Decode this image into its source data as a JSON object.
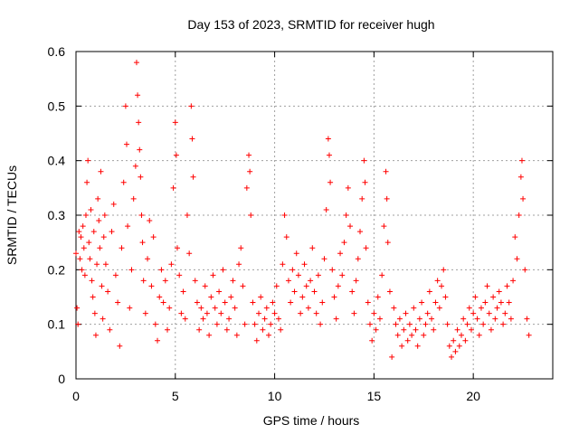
{
  "chart_data": {
    "type": "scatter",
    "title": "Day 153 of 2023, SRMTID for receiver hugh",
    "xlabel": "GPS time / hours",
    "ylabel": "SRMTID / TECUs",
    "xlim": [
      0,
      24
    ],
    "ylim": [
      0,
      0.6
    ],
    "x_ticks": [
      0,
      5,
      10,
      15,
      20
    ],
    "y_ticks": [
      0,
      0.1,
      0.2,
      0.3,
      0.4,
      0.5,
      0.6
    ],
    "x_tick_labels": [
      "0",
      "5",
      "10",
      "15",
      "20"
    ],
    "y_tick_labels": [
      "0",
      "0.1",
      "0.2",
      "0.3",
      "0.4",
      "0.5",
      "0.6"
    ],
    "grid": true,
    "marker": "+",
    "series": [
      {
        "name": "SRMTID",
        "color": "#ff0000",
        "points": [
          [
            0.0,
            0.23
          ],
          [
            0.05,
            0.13
          ],
          [
            0.1,
            0.1
          ],
          [
            0.15,
            0.27
          ],
          [
            0.2,
            0.22
          ],
          [
            0.25,
            0.26
          ],
          [
            0.3,
            0.2
          ],
          [
            0.35,
            0.28
          ],
          [
            0.4,
            0.24
          ],
          [
            0.45,
            0.19
          ],
          [
            0.5,
            0.3
          ],
          [
            0.55,
            0.36
          ],
          [
            0.6,
            0.4
          ],
          [
            0.65,
            0.25
          ],
          [
            0.7,
            0.22
          ],
          [
            0.75,
            0.31
          ],
          [
            0.8,
            0.18
          ],
          [
            0.85,
            0.15
          ],
          [
            0.9,
            0.27
          ],
          [
            0.95,
            0.12
          ],
          [
            1.0,
            0.08
          ],
          [
            1.05,
            0.21
          ],
          [
            1.1,
            0.33
          ],
          [
            1.15,
            0.29
          ],
          [
            1.2,
            0.24
          ],
          [
            1.25,
            0.38
          ],
          [
            1.3,
            0.17
          ],
          [
            1.35,
            0.11
          ],
          [
            1.4,
            0.26
          ],
          [
            1.45,
            0.3
          ],
          [
            1.5,
            0.21
          ],
          [
            1.6,
            0.16
          ],
          [
            1.7,
            0.09
          ],
          [
            1.8,
            0.27
          ],
          [
            1.9,
            0.32
          ],
          [
            2.0,
            0.19
          ],
          [
            2.1,
            0.14
          ],
          [
            2.2,
            0.06
          ],
          [
            2.3,
            0.24
          ],
          [
            2.4,
            0.36
          ],
          [
            2.5,
            0.5
          ],
          [
            2.55,
            0.43
          ],
          [
            2.6,
            0.28
          ],
          [
            2.7,
            0.13
          ],
          [
            2.8,
            0.2
          ],
          [
            2.9,
            0.33
          ],
          [
            3.0,
            0.39
          ],
          [
            3.05,
            0.58
          ],
          [
            3.1,
            0.52
          ],
          [
            3.15,
            0.47
          ],
          [
            3.2,
            0.42
          ],
          [
            3.25,
            0.37
          ],
          [
            3.3,
            0.3
          ],
          [
            3.35,
            0.25
          ],
          [
            3.4,
            0.18
          ],
          [
            3.5,
            0.12
          ],
          [
            3.6,
            0.22
          ],
          [
            3.7,
            0.29
          ],
          [
            3.8,
            0.17
          ],
          [
            3.9,
            0.26
          ],
          [
            4.0,
            0.1
          ],
          [
            4.1,
            0.07
          ],
          [
            4.2,
            0.15
          ],
          [
            4.3,
            0.2
          ],
          [
            4.4,
            0.14
          ],
          [
            4.5,
            0.18
          ],
          [
            4.6,
            0.09
          ],
          [
            4.7,
            0.13
          ],
          [
            4.8,
            0.21
          ],
          [
            4.9,
            0.35
          ],
          [
            5.0,
            0.47
          ],
          [
            5.05,
            0.41
          ],
          [
            5.1,
            0.24
          ],
          [
            5.2,
            0.19
          ],
          [
            5.3,
            0.12
          ],
          [
            5.4,
            0.16
          ],
          [
            5.5,
            0.11
          ],
          [
            5.6,
            0.3
          ],
          [
            5.7,
            0.23
          ],
          [
            5.8,
            0.5
          ],
          [
            5.85,
            0.44
          ],
          [
            5.9,
            0.37
          ],
          [
            6.0,
            0.18
          ],
          [
            6.1,
            0.14
          ],
          [
            6.2,
            0.09
          ],
          [
            6.3,
            0.13
          ],
          [
            6.4,
            0.11
          ],
          [
            6.5,
            0.17
          ],
          [
            6.6,
            0.12
          ],
          [
            6.7,
            0.08
          ],
          [
            6.8,
            0.15
          ],
          [
            6.9,
            0.19
          ],
          [
            7.0,
            0.13
          ],
          [
            7.1,
            0.1
          ],
          [
            7.2,
            0.16
          ],
          [
            7.3,
            0.12
          ],
          [
            7.4,
            0.2
          ],
          [
            7.5,
            0.14
          ],
          [
            7.6,
            0.09
          ],
          [
            7.7,
            0.11
          ],
          [
            7.8,
            0.15
          ],
          [
            7.9,
            0.18
          ],
          [
            8.0,
            0.13
          ],
          [
            8.1,
            0.08
          ],
          [
            8.2,
            0.21
          ],
          [
            8.3,
            0.24
          ],
          [
            8.4,
            0.17
          ],
          [
            8.5,
            0.1
          ],
          [
            8.6,
            0.35
          ],
          [
            8.7,
            0.41
          ],
          [
            8.75,
            0.38
          ],
          [
            8.8,
            0.3
          ],
          [
            8.9,
            0.14
          ],
          [
            9.0,
            0.1
          ],
          [
            9.1,
            0.07
          ],
          [
            9.2,
            0.12
          ],
          [
            9.3,
            0.15
          ],
          [
            9.4,
            0.09
          ],
          [
            9.5,
            0.11
          ],
          [
            9.6,
            0.13
          ],
          [
            9.7,
            0.08
          ],
          [
            9.8,
            0.1
          ],
          [
            9.9,
            0.14
          ],
          [
            10.0,
            0.12
          ],
          [
            10.1,
            0.17
          ],
          [
            10.2,
            0.11
          ],
          [
            10.3,
            0.09
          ],
          [
            10.4,
            0.21
          ],
          [
            10.5,
            0.3
          ],
          [
            10.6,
            0.26
          ],
          [
            10.7,
            0.18
          ],
          [
            10.8,
            0.14
          ],
          [
            10.9,
            0.2
          ],
          [
            11.0,
            0.16
          ],
          [
            11.1,
            0.23
          ],
          [
            11.2,
            0.19
          ],
          [
            11.3,
            0.12
          ],
          [
            11.4,
            0.15
          ],
          [
            11.5,
            0.21
          ],
          [
            11.6,
            0.17
          ],
          [
            11.7,
            0.13
          ],
          [
            11.8,
            0.18
          ],
          [
            11.9,
            0.24
          ],
          [
            12.0,
            0.16
          ],
          [
            12.1,
            0.12
          ],
          [
            12.2,
            0.19
          ],
          [
            12.3,
            0.1
          ],
          [
            12.4,
            0.14
          ],
          [
            12.5,
            0.22
          ],
          [
            12.6,
            0.31
          ],
          [
            12.7,
            0.44
          ],
          [
            12.75,
            0.41
          ],
          [
            12.8,
            0.36
          ],
          [
            12.9,
            0.2
          ],
          [
            13.0,
            0.15
          ],
          [
            13.1,
            0.11
          ],
          [
            13.2,
            0.17
          ],
          [
            13.3,
            0.23
          ],
          [
            13.4,
            0.19
          ],
          [
            13.5,
            0.25
          ],
          [
            13.6,
            0.3
          ],
          [
            13.7,
            0.35
          ],
          [
            13.8,
            0.28
          ],
          [
            13.9,
            0.16
          ],
          [
            14.0,
            0.12
          ],
          [
            14.1,
            0.18
          ],
          [
            14.2,
            0.22
          ],
          [
            14.3,
            0.27
          ],
          [
            14.4,
            0.33
          ],
          [
            14.5,
            0.4
          ],
          [
            14.55,
            0.36
          ],
          [
            14.6,
            0.24
          ],
          [
            14.7,
            0.14
          ],
          [
            14.8,
            0.1
          ],
          [
            14.9,
            0.07
          ],
          [
            15.0,
            0.12
          ],
          [
            15.1,
            0.09
          ],
          [
            15.2,
            0.15
          ],
          [
            15.3,
            0.11
          ],
          [
            15.4,
            0.19
          ],
          [
            15.5,
            0.28
          ],
          [
            15.6,
            0.38
          ],
          [
            15.65,
            0.33
          ],
          [
            15.7,
            0.25
          ],
          [
            15.8,
            0.16
          ],
          [
            15.9,
            0.04
          ],
          [
            16.0,
            0.13
          ],
          [
            16.1,
            0.1
          ],
          [
            16.2,
            0.08
          ],
          [
            16.3,
            0.11
          ],
          [
            16.4,
            0.06
          ],
          [
            16.5,
            0.09
          ],
          [
            16.6,
            0.12
          ],
          [
            16.7,
            0.07
          ],
          [
            16.8,
            0.1
          ],
          [
            16.9,
            0.08
          ],
          [
            17.0,
            0.13
          ],
          [
            17.1,
            0.09
          ],
          [
            17.2,
            0.06
          ],
          [
            17.3,
            0.11
          ],
          [
            17.4,
            0.14
          ],
          [
            17.5,
            0.08
          ],
          [
            17.6,
            0.1
          ],
          [
            17.7,
            0.12
          ],
          [
            17.8,
            0.16
          ],
          [
            17.9,
            0.11
          ],
          [
            18.0,
            0.09
          ],
          [
            18.1,
            0.14
          ],
          [
            18.2,
            0.18
          ],
          [
            18.3,
            0.13
          ],
          [
            18.4,
            0.17
          ],
          [
            18.5,
            0.2
          ],
          [
            18.6,
            0.15
          ],
          [
            18.7,
            0.1
          ],
          [
            18.8,
            0.06
          ],
          [
            18.9,
            0.04
          ],
          [
            19.0,
            0.07
          ],
          [
            19.1,
            0.05
          ],
          [
            19.2,
            0.09
          ],
          [
            19.3,
            0.06
          ],
          [
            19.4,
            0.08
          ],
          [
            19.5,
            0.11
          ],
          [
            19.6,
            0.07
          ],
          [
            19.7,
            0.1
          ],
          [
            19.8,
            0.13
          ],
          [
            19.9,
            0.09
          ],
          [
            20.0,
            0.12
          ],
          [
            20.1,
            0.15
          ],
          [
            20.2,
            0.11
          ],
          [
            20.3,
            0.08
          ],
          [
            20.4,
            0.13
          ],
          [
            20.5,
            0.1
          ],
          [
            20.6,
            0.14
          ],
          [
            20.7,
            0.17
          ],
          [
            20.8,
            0.12
          ],
          [
            20.9,
            0.09
          ],
          [
            21.0,
            0.15
          ],
          [
            21.1,
            0.11
          ],
          [
            21.2,
            0.13
          ],
          [
            21.3,
            0.16
          ],
          [
            21.4,
            0.14
          ],
          [
            21.5,
            0.1
          ],
          [
            21.6,
            0.12
          ],
          [
            21.7,
            0.17
          ],
          [
            21.8,
            0.14
          ],
          [
            21.9,
            0.11
          ],
          [
            22.0,
            0.18
          ],
          [
            22.1,
            0.26
          ],
          [
            22.2,
            0.22
          ],
          [
            22.3,
            0.3
          ],
          [
            22.4,
            0.37
          ],
          [
            22.45,
            0.4
          ],
          [
            22.5,
            0.33
          ],
          [
            22.6,
            0.2
          ],
          [
            22.7,
            0.11
          ],
          [
            22.8,
            0.08
          ]
        ]
      }
    ]
  }
}
